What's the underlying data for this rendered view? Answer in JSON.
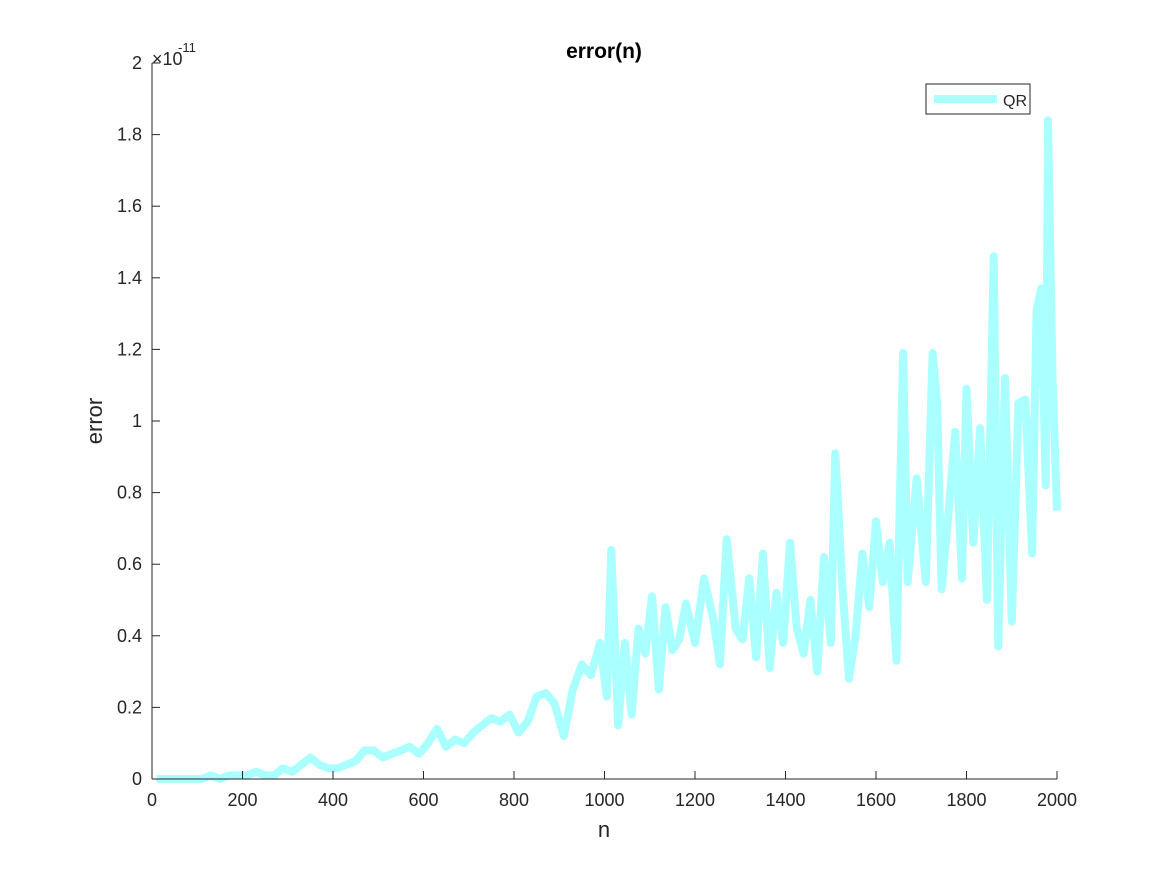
{
  "chart_data": {
    "type": "line",
    "title": "error(n)",
    "xlabel": "n",
    "ylabel": "error",
    "xlim": [
      0,
      2000
    ],
    "ylim": [
      0,
      2e-11
    ],
    "exponent_label": "×10",
    "exponent_power": "-11",
    "xticks": [
      0,
      200,
      400,
      600,
      800,
      1000,
      1200,
      1400,
      1600,
      1800,
      2000
    ],
    "xtick_labels": [
      "0",
      "200",
      "400",
      "600",
      "800",
      "1000",
      "1200",
      "1400",
      "1600",
      "1800",
      "2000"
    ],
    "yticks": [
      0,
      0.2,
      0.4,
      0.6,
      0.8,
      1.0,
      1.2,
      1.4,
      1.6,
      1.8,
      2.0
    ],
    "ytick_labels": [
      "0",
      "0.2",
      "0.4",
      "0.6",
      "0.8",
      "1",
      "1.2",
      "1.4",
      "1.6",
      "1.8",
      "2"
    ],
    "y_scale_note": "values in units of 1e-11",
    "grid": false,
    "legend_position": "top-right",
    "series": [
      {
        "name": "QR",
        "color": "#aaffff",
        "x": [
          10,
          30,
          50,
          70,
          90,
          110,
          130,
          150,
          170,
          190,
          210,
          230,
          250,
          270,
          290,
          310,
          330,
          350,
          370,
          390,
          410,
          430,
          450,
          470,
          490,
          510,
          530,
          550,
          570,
          590,
          610,
          630,
          650,
          670,
          690,
          710,
          730,
          750,
          770,
          790,
          810,
          830,
          850,
          870,
          890,
          910,
          930,
          950,
          970,
          990,
          1005,
          1015,
          1030,
          1045,
          1060,
          1075,
          1090,
          1105,
          1120,
          1135,
          1150,
          1165,
          1180,
          1200,
          1220,
          1240,
          1255,
          1270,
          1290,
          1305,
          1320,
          1335,
          1350,
          1365,
          1380,
          1395,
          1410,
          1425,
          1440,
          1455,
          1470,
          1485,
          1500,
          1510,
          1525,
          1540,
          1555,
          1570,
          1585,
          1600,
          1615,
          1630,
          1645,
          1660,
          1670,
          1690,
          1710,
          1725,
          1735,
          1745,
          1760,
          1775,
          1790,
          1800,
          1815,
          1830,
          1845,
          1860,
          1870,
          1885,
          1900,
          1915,
          1930,
          1945,
          1955,
          1965,
          1975,
          1980,
          1990,
          2000
        ],
        "y": [
          0.0,
          0.0,
          0.0,
          0.0,
          0.0,
          0.0,
          0.01,
          0.0,
          0.01,
          0.01,
          0.01,
          0.02,
          0.01,
          0.01,
          0.03,
          0.02,
          0.04,
          0.06,
          0.04,
          0.03,
          0.03,
          0.04,
          0.05,
          0.08,
          0.08,
          0.06,
          0.07,
          0.08,
          0.09,
          0.07,
          0.1,
          0.14,
          0.09,
          0.11,
          0.1,
          0.13,
          0.15,
          0.17,
          0.16,
          0.18,
          0.13,
          0.16,
          0.23,
          0.24,
          0.21,
          0.12,
          0.25,
          0.32,
          0.29,
          0.38,
          0.23,
          0.64,
          0.15,
          0.38,
          0.18,
          0.42,
          0.35,
          0.51,
          0.25,
          0.48,
          0.36,
          0.39,
          0.49,
          0.38,
          0.56,
          0.45,
          0.32,
          0.67,
          0.42,
          0.39,
          0.56,
          0.34,
          0.63,
          0.31,
          0.52,
          0.38,
          0.66,
          0.42,
          0.35,
          0.5,
          0.3,
          0.62,
          0.38,
          0.91,
          0.55,
          0.28,
          0.4,
          0.63,
          0.48,
          0.72,
          0.55,
          0.66,
          0.33,
          1.19,
          0.55,
          0.84,
          0.55,
          1.19,
          1.05,
          0.53,
          0.74,
          0.97,
          0.56,
          1.09,
          0.66,
          0.98,
          0.5,
          1.46,
          0.37,
          1.12,
          0.44,
          1.05,
          1.06,
          0.63,
          1.31,
          1.37,
          0.82,
          1.84,
          1.12,
          0.75
        ]
      }
    ]
  }
}
